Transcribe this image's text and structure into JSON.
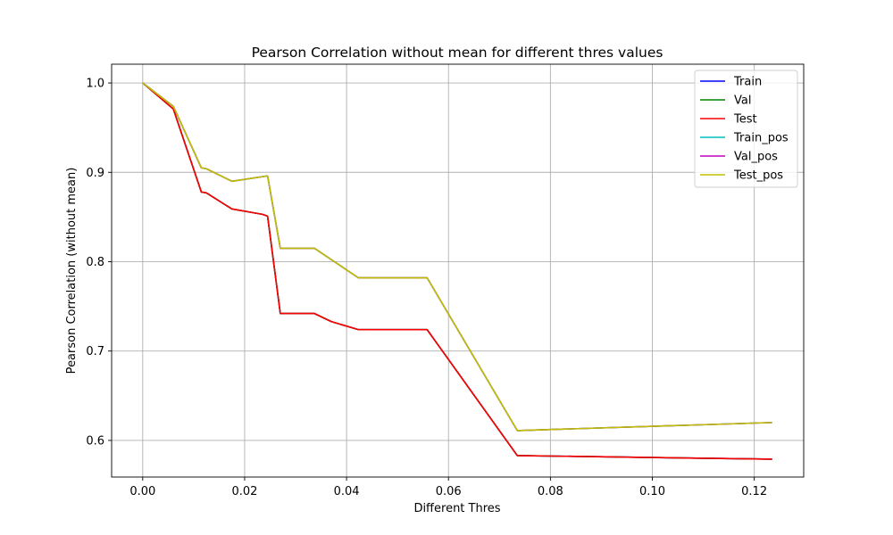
{
  "chart_data": {
    "type": "line",
    "title": "Pearson Correlation without mean for different thres values",
    "xlabel": "Different Thres",
    "ylabel": "Pearson Correlation (without mean)",
    "xlim": [
      -0.0061,
      0.1297
    ],
    "ylim": [
      0.559,
      1.021
    ],
    "xticks": [
      0.0,
      0.02,
      0.04,
      0.06,
      0.08,
      0.1,
      0.12
    ],
    "xtick_labels": [
      "0.00",
      "0.02",
      "0.04",
      "0.06",
      "0.08",
      "0.10",
      "0.12"
    ],
    "yticks": [
      0.6,
      0.7,
      0.8,
      0.9,
      1.0
    ],
    "ytick_labels": [
      "0.6",
      "0.7",
      "0.8",
      "0.9",
      "1.0"
    ],
    "grid": true,
    "legend_position": "top-right",
    "series": [
      {
        "name": "Train",
        "color": "#0000ff",
        "x": [
          0.0,
          0.006,
          0.0115,
          0.0125,
          0.0175,
          0.0235,
          0.0245,
          0.027,
          0.0337,
          0.037,
          0.0423,
          0.0558,
          0.0735,
          0.1235
        ],
        "y": [
          1.0,
          0.971,
          0.878,
          0.877,
          0.859,
          0.853,
          0.851,
          0.742,
          0.742,
          0.733,
          0.724,
          0.724,
          0.583,
          0.579
        ]
      },
      {
        "name": "Val",
        "color": "#008000",
        "x": [
          0.0,
          0.006,
          0.0115,
          0.0125,
          0.0175,
          0.0235,
          0.0245,
          0.027,
          0.0337,
          0.037,
          0.0423,
          0.0558,
          0.0735,
          0.1235
        ],
        "y": [
          1.0,
          0.971,
          0.878,
          0.877,
          0.859,
          0.853,
          0.851,
          0.742,
          0.742,
          0.733,
          0.724,
          0.724,
          0.583,
          0.579
        ]
      },
      {
        "name": "Test",
        "color": "#ff0000",
        "x": [
          0.0,
          0.006,
          0.0115,
          0.0125,
          0.0175,
          0.0235,
          0.0245,
          0.027,
          0.0337,
          0.037,
          0.0423,
          0.0558,
          0.0735,
          0.1235
        ],
        "y": [
          1.0,
          0.971,
          0.878,
          0.877,
          0.859,
          0.853,
          0.851,
          0.742,
          0.742,
          0.733,
          0.724,
          0.724,
          0.583,
          0.579
        ]
      },
      {
        "name": "Train_pos",
        "color": "#00bfbf",
        "x": [
          0.0,
          0.006,
          0.0115,
          0.0125,
          0.0175,
          0.0245,
          0.027,
          0.0337,
          0.0423,
          0.0558,
          0.0735,
          0.1235
        ],
        "y": [
          1.0,
          0.974,
          0.905,
          0.904,
          0.89,
          0.896,
          0.815,
          0.815,
          0.782,
          0.782,
          0.611,
          0.62
        ]
      },
      {
        "name": "Val_pos",
        "color": "#bf00bf",
        "x": [
          0.0,
          0.006,
          0.0115,
          0.0125,
          0.0175,
          0.0245,
          0.027,
          0.0337,
          0.0423,
          0.0558,
          0.0735,
          0.1235
        ],
        "y": [
          1.0,
          0.974,
          0.905,
          0.904,
          0.89,
          0.896,
          0.815,
          0.815,
          0.782,
          0.782,
          0.611,
          0.62
        ]
      },
      {
        "name": "Test_pos",
        "color": "#bfbf00",
        "x": [
          0.0,
          0.006,
          0.0115,
          0.0125,
          0.0175,
          0.0245,
          0.027,
          0.0337,
          0.0423,
          0.0558,
          0.0735,
          0.1235
        ],
        "y": [
          1.0,
          0.974,
          0.905,
          0.904,
          0.89,
          0.896,
          0.815,
          0.815,
          0.782,
          0.782,
          0.611,
          0.62
        ]
      }
    ]
  }
}
